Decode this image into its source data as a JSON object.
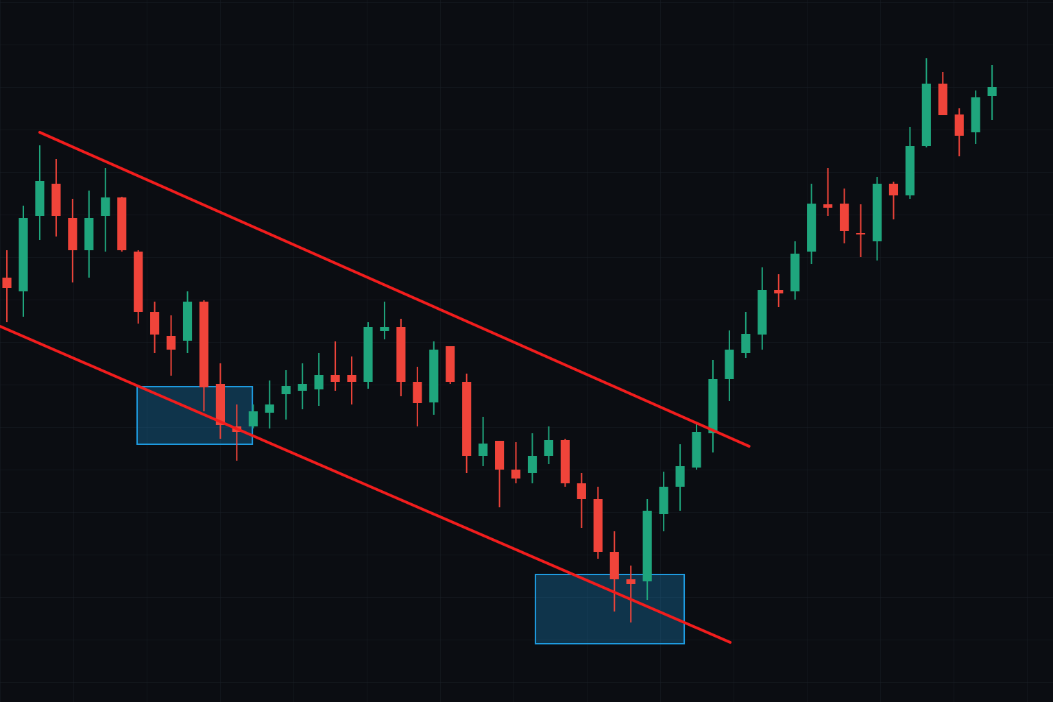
{
  "chart_data": {
    "type": "candlestick",
    "ylim": [
      0,
      1024
    ],
    "xlim": [
      -0.42,
      63.71
    ],
    "up_color": "#1fa67d",
    "down_color": "#f0443a",
    "grid": true,
    "open": [
      619,
      599,
      709,
      756,
      706,
      659,
      709,
      736,
      657,
      569,
      534,
      527,
      584,
      464,
      402,
      402,
      422,
      449,
      454,
      456,
      477,
      477,
      467,
      541,
      547,
      467,
      437,
      519,
      467,
      359,
      381,
      339,
      334,
      359,
      382,
      319,
      296,
      219,
      179,
      176,
      274,
      314,
      342,
      392,
      471,
      509,
      536,
      601,
      599,
      657,
      726,
      727,
      684,
      672,
      756,
      739,
      811,
      902,
      857,
      831,
      884
    ],
    "high": [
      659,
      724,
      812,
      792,
      734,
      746,
      779,
      737,
      659,
      584,
      564,
      599,
      586,
      494,
      434,
      434,
      469,
      484,
      494,
      509,
      526,
      504,
      554,
      584,
      559,
      489,
      526,
      519,
      479,
      416,
      381,
      379,
      392,
      402,
      384,
      334,
      314,
      249,
      199,
      296,
      336,
      376,
      409,
      499,
      542,
      569,
      634,
      624,
      672,
      756,
      779,
      749,
      726,
      766,
      759,
      839,
      939,
      919,
      866,
      892,
      929
    ],
    "low": [
      554,
      562,
      674,
      679,
      612,
      619,
      657,
      657,
      552,
      509,
      476,
      509,
      424,
      384,
      352,
      399,
      399,
      412,
      427,
      432,
      454,
      434,
      457,
      529,
      446,
      402,
      419,
      464,
      334,
      344,
      284,
      319,
      319,
      347,
      314,
      254,
      209,
      132,
      116,
      149,
      249,
      279,
      339,
      364,
      439,
      502,
      514,
      576,
      587,
      639,
      709,
      669,
      649,
      644,
      704,
      734,
      809,
      856,
      796,
      814,
      849
    ],
    "close": [
      604,
      706,
      760,
      709,
      659,
      706,
      736,
      659,
      569,
      536,
      514,
      584,
      459,
      404,
      394,
      424,
      434,
      461,
      464,
      477,
      467,
      467,
      547,
      547,
      467,
      436,
      514,
      467,
      359,
      377,
      339,
      326,
      359,
      382,
      319,
      296,
      219,
      179,
      172,
      279,
      314,
      344,
      394,
      471,
      514,
      537,
      601,
      596,
      654,
      727,
      721,
      687,
      682,
      756,
      739,
      811,
      902,
      856,
      826,
      882,
      897
    ],
    "trendlines": [
      {
        "color": "#f21d1d",
        "x": [
          2,
          45.2
        ],
        "y": [
          831,
          373
        ]
      },
      {
        "color": "#f21d1d",
        "x": [
          -0.42,
          44.05
        ],
        "y": [
          548,
          87
        ]
      }
    ],
    "zones": [
      {
        "color": "#1e9be0",
        "x": [
          7.93,
          14.95
        ],
        "y": [
          376,
          460
        ]
      },
      {
        "color": "#1e9be0",
        "x": [
          32.19,
          41.25
        ],
        "y": [
          85,
          186
        ]
      }
    ]
  }
}
